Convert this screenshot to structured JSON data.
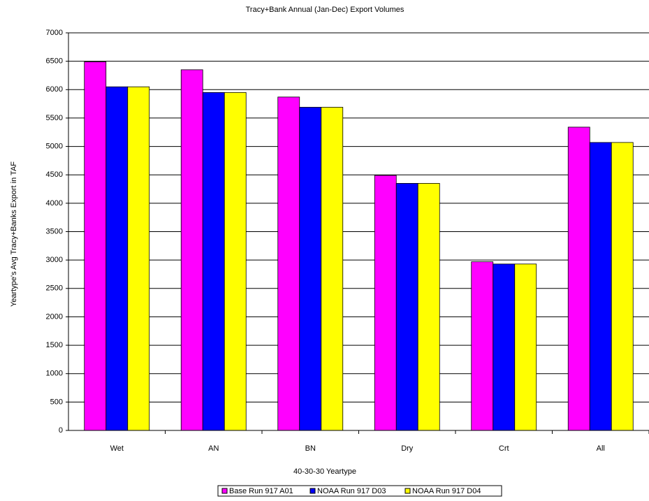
{
  "chart_data": {
    "type": "bar",
    "title": "Tracy+Bank Annual (Jan-Dec) Export Volumes",
    "x_label": "40-30-30 Yeartype",
    "y_label": "Yeartype's Avg Tracy+Banks Export in TAF",
    "categories": [
      "Wet",
      "AN",
      "BN",
      "Dry",
      "Crt",
      "All"
    ],
    "series": [
      {
        "name": "Base Run 917 A01",
        "color": "#ff00ff",
        "values": [
          6490,
          6350,
          5870,
          4490,
          2970,
          5340
        ]
      },
      {
        "name": "NOAA Run 917 D03",
        "color": "#0000ff",
        "values": [
          6050,
          5950,
          5690,
          4350,
          2930,
          5070
        ]
      },
      {
        "name": "NOAA Run 917 D04",
        "color": "#ffff00",
        "values": [
          6050,
          5950,
          5690,
          4350,
          2930,
          5070
        ]
      }
    ],
    "ylim": [
      0,
      7000
    ],
    "yticks": [
      0,
      500,
      1000,
      1500,
      2000,
      2500,
      3000,
      3500,
      4000,
      4500,
      5000,
      5500,
      6000,
      6500,
      7000
    ],
    "grid": true,
    "legend": "bottom"
  }
}
